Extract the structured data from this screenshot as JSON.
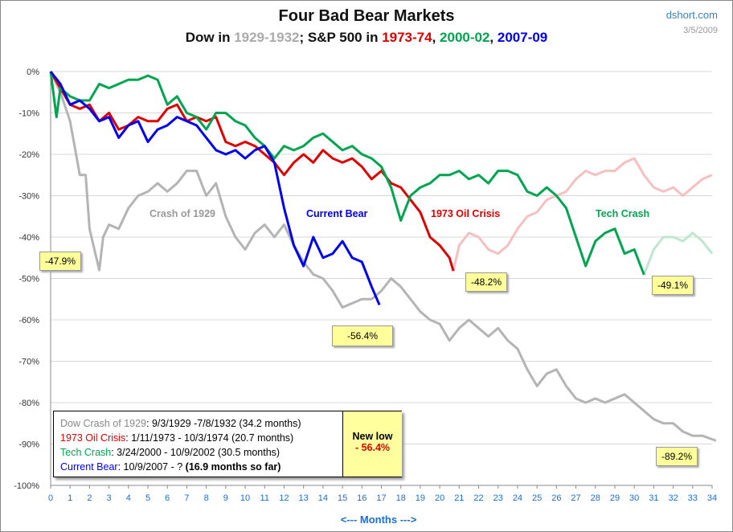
{
  "chart_data": {
    "type": "line",
    "title": "Four Bad Bear Markets",
    "subtitle": {
      "parts": [
        {
          "text": "Dow in ",
          "color": "#111111"
        },
        {
          "text": "1929-1932",
          "color": "#aaaaaa"
        },
        {
          "text": "; S&P 500 in ",
          "color": "#111111"
        },
        {
          "text": "1973-74",
          "color": "#dd0000"
        },
        {
          "text": ", ",
          "color": "#111111"
        },
        {
          "text": "2000-02",
          "color": "#00a550"
        },
        {
          "text": ", ",
          "color": "#111111"
        },
        {
          "text": "2007-09",
          "color": "#0000ee"
        }
      ]
    },
    "source": "dshort.com",
    "date": "3/5/2009",
    "xlabel": "<---  Months  --->",
    "xlim": [
      0,
      34
    ],
    "ylim": [
      -100,
      0
    ],
    "xticks": [
      "0",
      "1",
      "2",
      "3",
      "4",
      "5",
      "6",
      "7",
      "8",
      "9",
      "10",
      "11",
      "12",
      "13",
      "14",
      "15",
      "16",
      "17",
      "18",
      "19",
      "20",
      "21",
      "22",
      "23",
      "24",
      "25",
      "26",
      "27",
      "28",
      "29",
      "30",
      "31",
      "32",
      "33",
      "34"
    ],
    "yticks": [
      "0%",
      "-10%",
      "-20%",
      "-30%",
      "-40%",
      "-50%",
      "-60%",
      "-70%",
      "-80%",
      "-90%",
      "-100%"
    ],
    "grid": true,
    "series": [
      {
        "name": "Crash of 1929",
        "color": "#b4b4b4",
        "label_color": "#999999",
        "x": [
          0,
          0.5,
          1,
          1.5,
          1.8,
          2,
          2.2,
          2.5,
          2.7,
          3,
          3.5,
          4,
          4.5,
          5,
          5.5,
          6,
          6.5,
          7,
          7.5,
          8,
          8.5,
          9,
          9.5,
          10,
          10.5,
          11,
          11.5,
          12,
          12.5,
          13,
          13.5,
          14,
          14.5,
          15,
          15.5,
          16,
          16.5,
          17,
          17.5,
          18,
          18.5,
          19,
          19.5,
          20,
          20.5,
          21,
          21.5,
          22,
          22.5,
          23,
          23.5,
          24,
          24.5,
          25,
          25.5,
          26,
          26.5,
          27,
          27.5,
          28,
          28.5,
          29,
          29.5,
          30,
          30.5,
          31,
          31.5,
          32,
          32.5,
          33,
          33.5,
          34.2
        ],
        "y": [
          0,
          -5,
          -12,
          -25,
          -25,
          -38,
          -42,
          -48,
          -40,
          -37,
          -38,
          -33,
          -30,
          -29,
          -27,
          -29,
          -27,
          -24,
          -24,
          -30,
          -27,
          -35,
          -40,
          -43,
          -39,
          -37,
          -40,
          -37,
          -42,
          -46,
          -49,
          -50,
          -53,
          -57,
          -56,
          -55,
          -55,
          -53,
          -50,
          -52,
          -55,
          -58,
          -60,
          -61,
          -65,
          -62,
          -60,
          -62,
          -64,
          -62,
          -65,
          -67,
          -72,
          -76,
          -73,
          -72,
          -76,
          -79,
          -80,
          -79,
          -80,
          -79,
          -78,
          -80,
          -82,
          -84,
          -85,
          -85,
          -87,
          -88,
          -88,
          -89.2
        ]
      },
      {
        "name": "1973 Oil Crisis",
        "color": "#dd0000",
        "label_color": "#dd0000",
        "x": [
          0,
          0.5,
          1,
          1.5,
          2,
          2.5,
          3,
          3.5,
          4,
          4.5,
          5,
          5.5,
          6,
          6.5,
          7,
          7.5,
          8,
          8.5,
          9,
          9.5,
          10,
          10.5,
          11,
          11.5,
          12,
          12.5,
          13,
          13.5,
          14,
          14.5,
          15,
          15.5,
          16,
          16.5,
          17,
          17.5,
          18,
          18.5,
          19,
          19.5,
          20,
          20.5,
          20.7
        ],
        "y": [
          0,
          -4,
          -8,
          -9,
          -8,
          -12,
          -10,
          -14,
          -13,
          -11,
          -12,
          -12,
          -9,
          -8,
          -12,
          -11,
          -12,
          -11,
          -17,
          -18,
          -17,
          -18,
          -20,
          -22,
          -25,
          -22,
          -20,
          -22,
          -19,
          -21,
          -22,
          -21,
          -23,
          -26,
          -24,
          -27,
          -28,
          -31,
          -34,
          -40,
          -42,
          -45,
          -48.2
        ],
        "continuation_color": "#f4c0c0",
        "continuation_x": [
          20.7,
          21,
          21.5,
          22,
          22.5,
          23,
          23.5,
          24,
          24.5,
          25,
          25.5,
          26,
          26.5,
          27,
          27.5,
          28,
          28.5,
          29,
          29.5,
          30,
          30.5,
          31,
          31.5,
          32,
          32.5,
          33,
          33.5,
          34
        ],
        "continuation_y": [
          -48.2,
          -42,
          -39,
          -40,
          -43,
          -44,
          -42,
          -38,
          -35,
          -34,
          -31,
          -30,
          -29,
          -26,
          -24,
          -25,
          -24,
          -24,
          -22,
          -21,
          -25,
          -28,
          -29,
          -28,
          -30,
          -28,
          -26,
          -25
        ]
      },
      {
        "name": "Tech Crash",
        "color": "#00a550",
        "label_color": "#00a550",
        "x": [
          0,
          0.3,
          0.5,
          1,
          1.5,
          2,
          2.5,
          3,
          3.5,
          4,
          4.5,
          5,
          5.5,
          6,
          6.5,
          7,
          7.5,
          8,
          8.5,
          9,
          9.5,
          10,
          10.5,
          11,
          11.5,
          12,
          12.5,
          13,
          13.5,
          14,
          14.5,
          15,
          15.5,
          16,
          16.5,
          17,
          17.5,
          18,
          18.5,
          19,
          19.5,
          20,
          20.5,
          21,
          21.5,
          22,
          22.5,
          23,
          23.5,
          24,
          24.5,
          25,
          25.5,
          26,
          26.5,
          27,
          27.5,
          28,
          28.5,
          29,
          29.5,
          30,
          30.5
        ],
        "y": [
          0,
          -11,
          -4,
          -6,
          -7,
          -7,
          -3,
          -4,
          -3,
          -2,
          -2,
          -1,
          -2,
          -8,
          -6,
          -10,
          -11,
          -14,
          -10,
          -10,
          -12,
          -13,
          -16,
          -18,
          -21,
          -18,
          -19,
          -18,
          -16,
          -15,
          -17,
          -19,
          -18,
          -20,
          -21,
          -23,
          -28,
          -36,
          -30,
          -28,
          -27,
          -25,
          -25,
          -24,
          -26,
          -25,
          -27,
          -24,
          -24,
          -25,
          -29,
          -30,
          -28,
          -30,
          -33,
          -40,
          -47,
          -41,
          -39,
          -38,
          -44,
          -43,
          -49.1
        ],
        "continuation_color": "#bfe6cf",
        "continuation_x": [
          30.5,
          31,
          31.5,
          32,
          32.5,
          33,
          33.5,
          34
        ],
        "continuation_y": [
          -49.1,
          -43,
          -40,
          -40,
          -41,
          -39,
          -41,
          -44
        ]
      },
      {
        "name": "Current Bear",
        "color": "#0000ee",
        "label_color": "#0000ee",
        "x": [
          0,
          0.5,
          1,
          1.5,
          2,
          2.5,
          3,
          3.5,
          4,
          4.5,
          5,
          5.5,
          6,
          6.5,
          7,
          7.5,
          8,
          8.5,
          9,
          9.5,
          10,
          10.5,
          11,
          11.5,
          12,
          12.5,
          13,
          13.5,
          14,
          14.5,
          15,
          15.5,
          16,
          16.5,
          16.9
        ],
        "y": [
          0,
          -3,
          -8,
          -7,
          -9,
          -12,
          -11,
          -16,
          -13,
          -12,
          -17,
          -14,
          -13,
          -11,
          -12,
          -13,
          -16,
          -19,
          -20,
          -19,
          -21,
          -19,
          -18,
          -22,
          -33,
          -42,
          -47,
          -40,
          -45,
          -44,
          -41,
          -45,
          -46,
          -52,
          -56.4
        ]
      }
    ],
    "annotations": [
      "-47.9%",
      "-48.2%",
      "-49.1%",
      "-56.4%",
      "-89.2%"
    ],
    "legend": {
      "rows": [
        {
          "name": "Dow Crash of 1929",
          "color": "#888888",
          "detail": ": 9/3/1929  -7/8/1932  (34.2 months)"
        },
        {
          "name": "1973 Oil Crisis",
          "color": "#dd0000",
          "detail": ": 1/11/1973  - 10/3/1974  (20.7 months)"
        },
        {
          "name": "Tech Crash",
          "color": "#00a550",
          "detail": ":  3/24/2000  - 10/9/2002  (30.5 months)"
        },
        {
          "name": "Current Bear",
          "color": "#0000ee",
          "detail": ": 10/9/2007  - ?  ",
          "detail_bold": "(16.9 months so far)"
        }
      ],
      "new_low_label": "New low",
      "new_low_value": "- 56.4%"
    }
  }
}
